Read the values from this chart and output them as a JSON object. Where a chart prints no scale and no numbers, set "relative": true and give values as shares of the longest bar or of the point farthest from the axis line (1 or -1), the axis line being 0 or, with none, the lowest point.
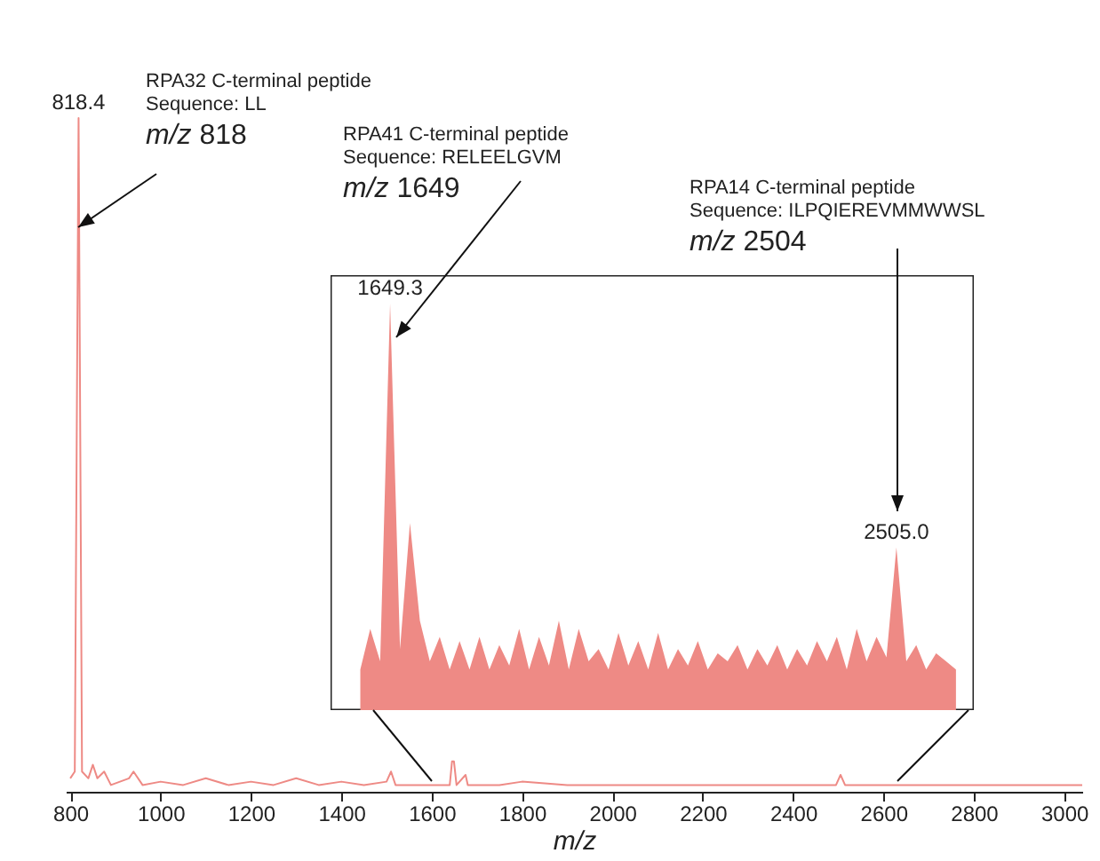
{
  "chart_data": [
    {
      "type": "line",
      "xlabel": "m/z",
      "relative": true,
      "tick_labels": "x",
      "xlim": [
        790,
        3040
      ],
      "xticks": [
        800,
        1000,
        1200,
        1400,
        1600,
        1800,
        2000,
        2200,
        2400,
        2600,
        2800,
        3000
      ],
      "x": [
        800,
        810,
        818.4,
        826,
        840,
        850,
        860,
        875,
        890,
        930,
        940,
        960,
        1000,
        1050,
        1100,
        1150,
        1200,
        1250,
        1300,
        1350,
        1400,
        1450,
        1500,
        1510,
        1520,
        1560,
        1600,
        1640,
        1645,
        1649.3,
        1655,
        1675,
        1680,
        1750,
        1800,
        1900,
        2000,
        2100,
        2200,
        2300,
        2400,
        2495,
        2505,
        2515,
        2600,
        2700,
        2800,
        2900,
        3000,
        3040
      ],
      "series": [
        {
          "color": "#ee8a85",
          "values": [
            0.02,
            0.03,
            1,
            0.03,
            0.02,
            0.04,
            0.02,
            0.03,
            0.01,
            0.02,
            0.03,
            0.01,
            0.015,
            0.01,
            0.02,
            0.01,
            0.015,
            0.01,
            0.02,
            0.01,
            0.015,
            0.01,
            0.015,
            0.03,
            0.01,
            0.01,
            0.01,
            0.01,
            0.045,
            0.045,
            0.01,
            0.025,
            0.01,
            0.01,
            0.015,
            0.01,
            0.01,
            0.01,
            0.01,
            0.01,
            0.01,
            0.01,
            0.025,
            0.01,
            0.01,
            0.01,
            0.01,
            0.01,
            0.01,
            0.01
          ]
        }
      ],
      "annotations": [
        {
          "text": "818.4",
          "x": 818.4,
          "y": 1
        },
        "RPA32 C-terminal peptide\nSequence: LL\nm/z 818",
        "RPA41 C-terminal peptide\nSequence: RELEELGVM\nm/z 1649",
        "RPA14 C-terminal peptide\nSequence: ILPQIEREVMMWWSL\nm/z 2504"
      ]
    },
    {
      "type": "area",
      "relative": true,
      "tick_labels": false,
      "categories": [
        null,
        null,
        null,
        null,
        null,
        null,
        null,
        null,
        null,
        null,
        null,
        null,
        null,
        null,
        null,
        null,
        null,
        null,
        null,
        null,
        null,
        null,
        null,
        null,
        null,
        null,
        null,
        null,
        null,
        null,
        null,
        null,
        null,
        null,
        null,
        null,
        null,
        null,
        null,
        null,
        null,
        null,
        null,
        null,
        null,
        null,
        null,
        null,
        null,
        null,
        null,
        null,
        null,
        null,
        null,
        null,
        null,
        null,
        null,
        null,
        null
      ],
      "series": [
        {
          "color": "#ee8a85",
          "values": [
            0.1,
            0.2,
            0.12,
            1,
            0.15,
            0.46,
            0.22,
            0.12,
            0.18,
            0.1,
            0.17,
            0.1,
            0.18,
            0.1,
            0.16,
            0.11,
            0.2,
            0.1,
            0.18,
            0.11,
            0.22,
            0.1,
            0.2,
            0.12,
            0.15,
            0.1,
            0.19,
            0.11,
            0.17,
            0.1,
            0.19,
            0.1,
            0.15,
            0.11,
            0.17,
            0.1,
            0.14,
            0.12,
            0.16,
            0.1,
            0.15,
            0.11,
            0.16,
            0.1,
            0.15,
            0.11,
            0.17,
            0.12,
            0.18,
            0.1,
            0.2,
            0.12,
            0.18,
            0.13,
            0.4,
            0.12,
            0.16,
            0.1,
            0.14,
            0.12,
            0.1
          ]
        }
      ],
      "annotations": [
        {
          "text": "1649.3",
          "y": 1
        },
        {
          "text": "2505.0",
          "y": 0.4
        }
      ]
    }
  ]
}
